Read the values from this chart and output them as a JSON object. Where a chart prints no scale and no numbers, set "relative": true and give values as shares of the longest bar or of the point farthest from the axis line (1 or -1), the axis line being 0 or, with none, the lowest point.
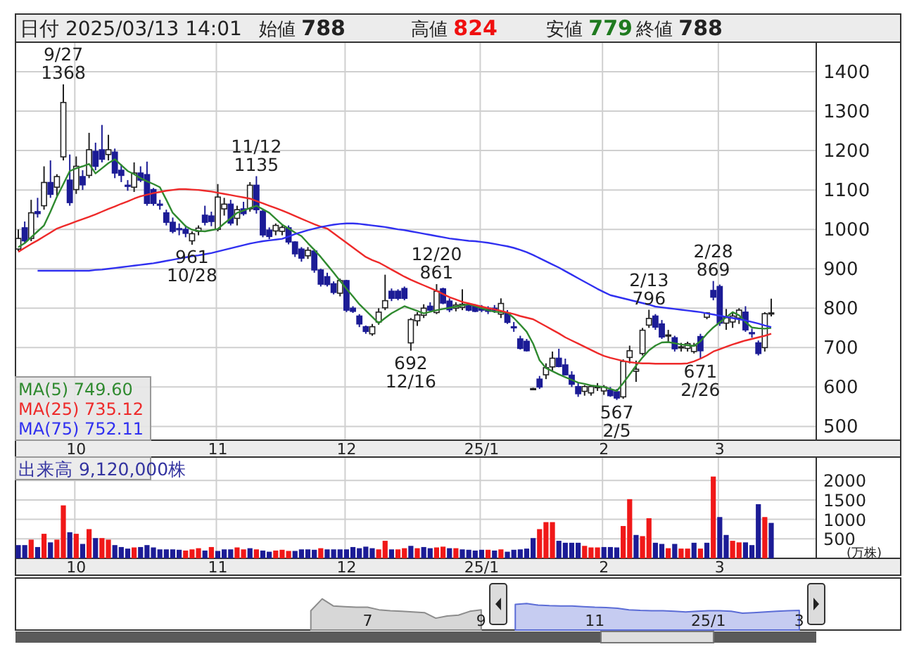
{
  "chart_data": [
    {
      "type": "candlestick",
      "title": "日付 2025/03/13 14:01",
      "annotations": [
        "始値 788",
        "高値 824",
        "安値 779",
        "終値 788",
        {
          "text": "9/27\n1368",
          "y": 1368
        },
        {
          "text": "961\n10/28",
          "y": 961
        },
        {
          "text": "11/12\n1135",
          "y": 1135
        },
        {
          "text": "692\n12/16",
          "y": 692
        },
        {
          "text": "12/20\n861",
          "y": 861
        },
        {
          "text": "567\n2/5",
          "y": 567
        },
        {
          "text": "2/13\n796",
          "y": 796
        },
        {
          "text": "671\n2/26",
          "y": 671
        },
        {
          "text": "2/28\n869",
          "y": 869
        }
      ],
      "categories": [
        null,
        null,
        null,
        null,
        null,
        null,
        null,
        null,
        null,
        "10",
        null,
        null,
        null,
        null,
        null,
        null,
        null,
        null,
        null,
        null,
        null,
        null,
        null,
        null,
        null,
        null,
        null,
        null,
        null,
        null,
        null,
        "11",
        null,
        null,
        null,
        null,
        null,
        null,
        null,
        null,
        null,
        null,
        null,
        null,
        null,
        null,
        null,
        null,
        null,
        null,
        null,
        "12",
        null,
        null,
        null,
        null,
        null,
        null,
        null,
        null,
        null,
        null,
        null,
        null,
        null,
        null,
        null,
        null,
        null,
        null,
        null,
        null,
        "25/1",
        null,
        null,
        null,
        null,
        null,
        null,
        null,
        null,
        null,
        null,
        null,
        null,
        null,
        null,
        null,
        null,
        null,
        null,
        "2",
        null,
        null,
        null,
        null,
        null,
        null,
        null,
        null,
        null,
        null,
        null,
        null,
        null,
        null,
        null,
        null,
        null,
        "3",
        null,
        null,
        null,
        null,
        null,
        null,
        null,
        null
      ],
      "ohlc": [
        [
          950,
          1000,
          945,
          977
        ],
        [
          1004,
          1020,
          965,
          971
        ],
        [
          977,
          1075,
          970,
          1042
        ],
        [
          1045,
          1080,
          1030,
          1040
        ],
        [
          1060,
          1160,
          1050,
          1119
        ],
        [
          1119,
          1175,
          1080,
          1089
        ],
        [
          1107,
          1140,
          1085,
          1134
        ],
        [
          1184,
          1368,
          1175,
          1322
        ],
        [
          1125,
          1190,
          1060,
          1068
        ],
        [
          1101,
          1185,
          1090,
          1160
        ],
        [
          1134,
          1150,
          1100,
          1113
        ],
        [
          1137,
          1245,
          1130,
          1202
        ],
        [
          1198,
          1220,
          1150,
          1160
        ],
        [
          1202,
          1265,
          1170,
          1178
        ],
        [
          1190,
          1240,
          1175,
          1202
        ],
        [
          1196,
          1205,
          1130,
          1143
        ],
        [
          1150,
          1165,
          1120,
          1137
        ],
        [
          1112,
          1125,
          1098,
          1110
        ],
        [
          1107,
          1170,
          1095,
          1143
        ],
        [
          1143,
          1160,
          1120,
          1125
        ],
        [
          1139,
          1172,
          1060,
          1066
        ],
        [
          1101,
          1105,
          1060,
          1066
        ],
        [
          1064,
          1075,
          1050,
          1062
        ],
        [
          1042,
          1050,
          1010,
          1018
        ],
        [
          1018,
          1030,
          990,
          995
        ],
        [
          1002,
          1015,
          985,
          1000
        ],
        [
          1000,
          1010,
          980,
          990
        ],
        [
          971,
          995,
          961,
          989
        ],
        [
          995,
          1010,
          985,
          1003
        ],
        [
          1036,
          1060,
          1010,
          1018
        ],
        [
          1034,
          1045,
          1008,
          1020
        ],
        [
          1000,
          1115,
          995,
          1082
        ],
        [
          1052,
          1080,
          1035,
          1064
        ],
        [
          1064,
          1075,
          1010,
          1016
        ],
        [
          1028,
          1060,
          1010,
          1050
        ],
        [
          1052,
          1070,
          1035,
          1040
        ],
        [
          1052,
          1120,
          1045,
          1112
        ],
        [
          1112,
          1135,
          1040,
          1050
        ],
        [
          1046,
          1050,
          980,
          986
        ],
        [
          998,
          1005,
          975,
          982
        ],
        [
          996,
          1015,
          985,
          1010
        ],
        [
          995,
          1010,
          985,
          1005
        ],
        [
          1004,
          1010,
          962,
          968
        ],
        [
          968,
          970,
          930,
          938
        ],
        [
          950,
          955,
          918,
          927
        ],
        [
          933,
          955,
          925,
          947
        ],
        [
          945,
          950,
          890,
          897
        ],
        [
          897,
          900,
          855,
          861
        ],
        [
          880,
          890,
          855,
          860
        ],
        [
          862,
          868,
          835,
          840
        ],
        [
          838,
          875,
          830,
          870
        ],
        [
          870,
          872,
          790,
          795
        ],
        [
          800,
          805,
          788,
          792
        ],
        [
          780,
          785,
          752,
          760
        ],
        [
          753,
          756,
          735,
          741
        ],
        [
          735,
          760,
          730,
          753
        ],
        [
          765,
          800,
          758,
          790
        ],
        [
          801,
          885,
          795,
          819
        ],
        [
          843,
          850,
          818,
          825
        ],
        [
          843,
          848,
          820,
          825
        ],
        [
          850,
          855,
          820,
          825
        ],
        [
          712,
          775,
          692,
          771
        ],
        [
          768,
          790,
          755,
          783
        ],
        [
          782,
          810,
          775,
          800
        ],
        [
          805,
          815,
          790,
          795
        ],
        [
          789,
          861,
          785,
          843
        ],
        [
          849,
          852,
          810,
          813
        ],
        [
          818,
          825,
          790,
          796
        ],
        [
          800,
          815,
          792,
          808
        ],
        [
          802,
          848,
          795,
          810
        ],
        [
          806,
          812,
          792,
          795
        ],
        [
          805,
          810,
          790,
          792
        ],
        [
          800,
          808,
          790,
          795
        ],
        [
          800,
          805,
          785,
          792
        ],
        [
          800,
          808,
          788,
          795
        ],
        [
          785,
          825,
          775,
          812
        ],
        [
          788,
          795,
          760,
          764
        ],
        [
          753,
          765,
          740,
          752
        ],
        [
          722,
          730,
          695,
          698
        ],
        [
          716,
          722,
          690,
          692
        ],
        [
          596,
          598,
          594,
          596
        ],
        [
          620,
          628,
          595,
          600
        ],
        [
          631,
          660,
          620,
          649
        ],
        [
          651,
          690,
          640,
          673
        ],
        [
          673,
          697,
          650,
          652
        ],
        [
          656,
          672,
          630,
          631
        ],
        [
          630,
          640,
          600,
          607
        ],
        [
          601,
          610,
          575,
          583
        ],
        [
          589,
          605,
          578,
          601
        ],
        [
          585,
          605,
          578,
          601
        ],
        [
          600,
          610,
          590,
          601
        ],
        [
          590,
          605,
          580,
          600
        ],
        [
          592,
          600,
          575,
          578
        ],
        [
          588,
          595,
          567,
          572
        ],
        [
          575,
          670,
          570,
          665
        ],
        [
          675,
          705,
          660,
          692
        ],
        [
          640,
          667,
          613,
          645
        ],
        [
          685,
          750,
          680,
          744
        ],
        [
          757,
          796,
          750,
          774
        ],
        [
          780,
          785,
          745,
          752
        ],
        [
          760,
          770,
          722,
          727
        ],
        [
          730,
          745,
          712,
          732
        ],
        [
          725,
          730,
          690,
          697
        ],
        [
          700,
          712,
          690,
          702
        ],
        [
          698,
          715,
          690,
          710
        ],
        [
          690,
          712,
          685,
          705
        ],
        [
          728,
          735,
          671,
          692
        ],
        [
          777,
          790,
          772,
          788
        ],
        [
          845,
          869,
          820,
          828
        ],
        [
          855,
          860,
          755,
          762
        ],
        [
          762,
          798,
          745,
          776
        ],
        [
          765,
          790,
          750,
          780
        ],
        [
          775,
          800,
          760,
          795
        ],
        [
          790,
          805,
          740,
          745
        ],
        [
          738,
          748,
          725,
          736
        ],
        [
          712,
          718,
          680,
          685
        ],
        [
          700,
          790,
          690,
          786
        ],
        [
          788,
          824,
          779,
          788
        ]
      ],
      "series": [
        {
          "name": "MA(5) 749.60",
          "type": "line",
          "color": "#2f8a2f",
          "values": [
            955,
            965,
            980,
            995,
            1010,
            1045,
            1083,
            1115,
            1148,
            1155,
            1160,
            1166,
            1142,
            1155,
            1168,
            1178,
            1163,
            1148,
            1140,
            1130,
            1122,
            1115,
            1107,
            1075,
            1042,
            1025,
            1008,
            999,
            996,
            995,
            998,
            1001,
            1015,
            1028,
            1042,
            1048,
            1054,
            1060,
            1051,
            1042,
            1027,
            1012,
            1002,
            992,
            983,
            965,
            948,
            930,
            910,
            890,
            869,
            849,
            830,
            810,
            794,
            778,
            762,
            775,
            787,
            796,
            805,
            799,
            793,
            787,
            791,
            795,
            798,
            801,
            804,
            807,
            810,
            805,
            800,
            795,
            791,
            790,
            789,
            775,
            758,
            740,
            710,
            668,
            648,
            640,
            632,
            625,
            618,
            611,
            608,
            604,
            602,
            600,
            595,
            590,
            610,
            632,
            654,
            675,
            693,
            705,
            713,
            714,
            711,
            708,
            706,
            704,
            716,
            735,
            751,
            764,
            777,
            790,
            782,
            765,
            751,
            749,
            748,
            750
          ]
        },
        {
          "name": "MA(25) 735.12",
          "type": "line",
          "color": "#ee2a2a",
          "values": [
            943,
            953,
            963,
            972,
            982,
            992,
            1002,
            1008,
            1014,
            1020,
            1026,
            1032,
            1038,
            1045,
            1052,
            1058,
            1065,
            1071,
            1078,
            1084,
            1088,
            1092,
            1095,
            1098,
            1100,
            1102,
            1102,
            1101,
            1100,
            1098,
            1096,
            1093,
            1090,
            1087,
            1084,
            1081,
            1078,
            1072,
            1066,
            1060,
            1054,
            1048,
            1041,
            1034,
            1027,
            1020,
            1013,
            1007,
            1002,
            990,
            978,
            966,
            954,
            942,
            930,
            922,
            916,
            907,
            898,
            889,
            880,
            872,
            865,
            858,
            851,
            844,
            836,
            828,
            822,
            816,
            812,
            808,
            804,
            800,
            797,
            793,
            789,
            785,
            780,
            776,
            772,
            763,
            754,
            745,
            736,
            726,
            718,
            710,
            702,
            694,
            686,
            679,
            674,
            670,
            666,
            663,
            661,
            660,
            660,
            659,
            659,
            659,
            659,
            659,
            660,
            665,
            672,
            680,
            690,
            696,
            702,
            708,
            713,
            718,
            722,
            726,
            730,
            735
          ]
        },
        {
          "name": "MA(75) 752.11",
          "type": "line",
          "color": "#3030f0",
          "values": [
            null,
            null,
            null,
            895,
            895,
            895,
            895,
            895,
            895,
            895,
            895,
            895,
            897,
            898,
            900,
            902,
            904,
            906,
            908,
            910,
            912,
            914,
            917,
            920,
            923,
            926,
            929,
            932,
            934,
            937,
            940,
            944,
            948,
            952,
            956,
            960,
            964,
            967,
            970,
            972,
            974,
            976,
            982,
            988,
            993,
            998,
            1002,
            1006,
            1009,
            1012,
            1014,
            1015,
            1015,
            1014,
            1012,
            1010,
            1008,
            1006,
            1003,
            1000,
            998,
            995,
            992,
            989,
            986,
            983,
            980,
            977,
            975,
            973,
            971,
            970,
            968,
            966,
            963,
            960,
            957,
            953,
            948,
            942,
            935,
            927,
            919,
            911,
            903,
            894,
            885,
            876,
            867,
            858,
            849,
            841,
            833,
            829,
            825,
            821,
            817,
            813,
            809,
            804,
            802,
            800,
            798,
            796,
            794,
            792,
            790,
            787,
            784,
            781,
            778,
            775,
            772,
            769,
            765,
            761,
            756,
            752
          ]
        }
      ],
      "ylim": [
        465,
        1475
      ],
      "yticks": [
        500,
        600,
        700,
        800,
        900,
        1000,
        1100,
        1200,
        1300,
        1400
      ],
      "grid": true,
      "legend": "bottom left"
    },
    {
      "type": "bar",
      "title": "出来高 9,120,000株",
      "ylabel": "(万株)",
      "categories": [
        null,
        null,
        null,
        null,
        null,
        null,
        null,
        null,
        null,
        "10",
        null,
        null,
        null,
        null,
        null,
        null,
        null,
        null,
        null,
        null,
        null,
        null,
        null,
        null,
        null,
        null,
        null,
        null,
        null,
        null,
        null,
        "11",
        null,
        null,
        null,
        null,
        null,
        null,
        null,
        null,
        null,
        null,
        null,
        null,
        null,
        null,
        null,
        null,
        null,
        null,
        null,
        "12",
        null,
        null,
        null,
        null,
        null,
        null,
        null,
        null,
        null,
        null,
        null,
        null,
        null,
        null,
        null,
        null,
        null,
        null,
        null,
        null,
        "25/1",
        null,
        null,
        null,
        null,
        null,
        null,
        null,
        null,
        null,
        null,
        null,
        null,
        null,
        null,
        null,
        null,
        null,
        null,
        "2",
        null,
        null,
        null,
        null,
        null,
        null,
        null,
        null,
        null,
        null,
        null,
        null,
        null,
        null,
        null,
        null,
        null,
        "3",
        null,
        null,
        null,
        null,
        null,
        null,
        null,
        null
      ],
      "values": [
        340,
        340,
        480,
        290,
        630,
        410,
        480,
        1360,
        670,
        630,
        370,
        750,
        520,
        520,
        480,
        340,
        290,
        250,
        280,
        290,
        340,
        280,
        230,
        230,
        230,
        220,
        200,
        230,
        260,
        200,
        290,
        190,
        230,
        230,
        280,
        230,
        260,
        230,
        200,
        170,
        200,
        220,
        190,
        190,
        230,
        230,
        220,
        260,
        230,
        230,
        230,
        230,
        290,
        260,
        300,
        260,
        230,
        450,
        230,
        230,
        260,
        320,
        260,
        290,
        260,
        280,
        300,
        260,
        260,
        230,
        220,
        200,
        220,
        220,
        200,
        230,
        170,
        220,
        230,
        250,
        520,
        750,
        930,
        930,
        450,
        400,
        400,
        400,
        320,
        280,
        280,
        290,
        290,
        280,
        830,
        1520,
        600,
        570,
        1030,
        400,
        370,
        260,
        370,
        250,
        250,
        400,
        250,
        400,
        2100,
        1060,
        600,
        450,
        410,
        410,
        340,
        1390,
        1060,
        910
      ],
      "colors": [
        "#1c1c96",
        "#1c1c96",
        "#f01818",
        "#1c1c96",
        "#f01818",
        "#1c1c96",
        "#f01818",
        "#f01818",
        "#1c1c96",
        "#f01818",
        "#1c1c96",
        "#f01818",
        "#1c1c96",
        "#f01818",
        "#f01818",
        "#1c1c96",
        "#1c1c96",
        "#1c1c96",
        "#f01818",
        "#1c1c96",
        "#1c1c96",
        "#1c1c96",
        "#1c1c96",
        "#1c1c96",
        "#1c1c96",
        "#1c1c96",
        "#f01818",
        "#f01818",
        "#f01818",
        "#1c1c96",
        "#f01818",
        "#1c1c96",
        "#1c1c96",
        "#1c1c96",
        "#f01818",
        "#f01818",
        "#1c1c96",
        "#f01818",
        "#1c1c96",
        "#1c1c96",
        "#f01818",
        "#f01818",
        "#f01818",
        "#1c1c96",
        "#1c1c96",
        "#1c1c96",
        "#1c1c96",
        "#f01818",
        "#1c1c96",
        "#1c1c96",
        "#1c1c96",
        "#1c1c96",
        "#1c1c96",
        "#1c1c96",
        "#1c1c96",
        "#1c1c96",
        "#f01818",
        "#f01818",
        "#1c1c96",
        "#f01818",
        "#f01818",
        "#1c1c96",
        "#f01818",
        "#1c1c96",
        "#1c1c96",
        "#f01818",
        "#f01818",
        "#1c1c96",
        "#f01818",
        "#1c1c96",
        "#1c1c96",
        "#1c1c96",
        "#1c1c96",
        "#f01818",
        "#1c1c96",
        "#f01818",
        "#1c1c96",
        "#1c1c96",
        "#1c1c96",
        "#1c1c96",
        "#1c1c96",
        "#f01818",
        "#f01818",
        "#f01818",
        "#1c1c96",
        "#1c1c96",
        "#1c1c96",
        "#1c1c96",
        "#f01818",
        "#f01818",
        "#f01818",
        "#1c1c96",
        "#1c1c96",
        "#1c1c96",
        "#f01818",
        "#f01818",
        "#1c1c96",
        "#f01818",
        "#f01818",
        "#1c1c96",
        "#1c1c96",
        "#f01818",
        "#1c1c96",
        "#f01818",
        "#f01818",
        "#1c1c96",
        "#f01818",
        "#1c1c96",
        "#f01818",
        "#1c1c96",
        "#1c1c96",
        "#f01818",
        "#f01818",
        "#1c1c96",
        "#1c1c96",
        "#1c1c96",
        "#f01818",
        "#1c1c96"
      ],
      "ylim": [
        0,
        2600
      ],
      "yticks": [
        500,
        1000,
        1500,
        2000
      ],
      "grid": true
    },
    {
      "type": "area",
      "relative": true,
      "categories": [
        null,
        null,
        null,
        null,
        null,
        null,
        null,
        null,
        null,
        null,
        null,
        null,
        null,
        null,
        null,
        null,
        null,
        null,
        null,
        null,
        null,
        null,
        null,
        null,
        null,
        null,
        null,
        null,
        null,
        null,
        null,
        "7",
        null,
        null,
        null,
        null,
        null,
        null,
        null,
        null,
        null,
        "9",
        null,
        null,
        null,
        null,
        null,
        null,
        null,
        null,
        null,
        "11",
        null,
        null,
        null,
        null,
        null,
        null,
        null,
        null,
        null,
        "25/1",
        null,
        null,
        null,
        null,
        null,
        null,
        null,
        "3",
        null
      ],
      "series": [
        {
          "color": "#8c8c8c",
          "values": [
            null,
            null,
            null,
            null,
            null,
            null,
            null,
            null,
            null,
            null,
            null,
            null,
            null,
            null,
            null,
            null,
            null,
            null,
            null,
            null,
            null,
            null,
            null,
            null,
            null,
            null,
            0.62,
            1.0,
            0.77,
            0.75,
            0.73,
            0.73,
            0.65,
            0.62,
            0.6,
            0.58,
            0.56,
            0.38,
            0.45,
            0.48,
            0.6,
            0.65,
            null,
            null,
            null,
            null,
            null,
            null,
            null,
            null,
            null,
            null,
            null,
            null,
            null,
            null,
            null,
            null,
            null,
            null,
            null,
            null,
            null,
            null,
            null,
            null,
            null,
            null,
            null,
            null,
            null
          ]
        },
        {
          "color": "#5b6cd6",
          "values": [
            null,
            null,
            null,
            null,
            null,
            null,
            null,
            null,
            null,
            null,
            null,
            null,
            null,
            null,
            null,
            null,
            null,
            null,
            null,
            null,
            null,
            null,
            null,
            null,
            null,
            null,
            null,
            null,
            null,
            null,
            null,
            null,
            null,
            null,
            null,
            null,
            null,
            null,
            null,
            null,
            null,
            null,
            null,
            null,
            0.82,
            0.85,
            0.8,
            0.78,
            0.77,
            0.77,
            0.75,
            0.73,
            0.72,
            0.7,
            0.65,
            0.63,
            0.62,
            0.62,
            0.6,
            0.58,
            0.6,
            0.62,
            0.62,
            0.6,
            0.54,
            0.56,
            0.58,
            0.6,
            0.62,
            0.63,
            null
          ]
        }
      ]
    }
  ]
}
